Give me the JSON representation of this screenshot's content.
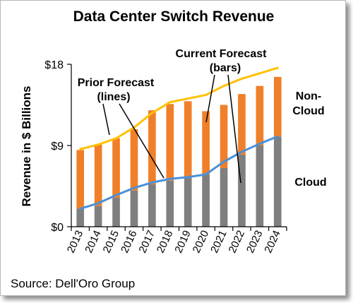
{
  "chart_data": {
    "type": "bar",
    "title": "Data Center Switch Revenue",
    "ylabel": "Revenue in $ Billions",
    "xlabel": "",
    "ylim": [
      0,
      18
    ],
    "yticks": [
      "$0",
      "$9",
      "$18"
    ],
    "ytick_values": [
      0,
      9,
      18
    ],
    "categories": [
      "2013",
      "2014",
      "2015",
      "2016",
      "2017",
      "2018",
      "2019",
      "2020",
      "2021",
      "2022",
      "2023",
      "2024"
    ],
    "series": [
      {
        "name": "Cloud",
        "kind": "bar",
        "color": "#7f7f7f",
        "values": [
          2.0,
          2.3,
          3.2,
          4.0,
          4.7,
          5.1,
          5.5,
          5.8,
          6.5,
          8.0,
          9.0,
          10.0
        ]
      },
      {
        "name": "Non-Cloud",
        "kind": "bar",
        "color": "#f07f2a",
        "values": [
          6.5,
          6.8,
          6.6,
          6.8,
          8.2,
          8.5,
          8.4,
          7.0,
          7.0,
          6.7,
          6.6,
          6.6
        ]
      },
      {
        "name": "Prior Forecast total",
        "kind": "line",
        "color": "#ffc000",
        "values": [
          8.6,
          9.1,
          9.8,
          11.0,
          12.6,
          13.8,
          14.2,
          14.6,
          15.6,
          16.4,
          17.0,
          17.6
        ]
      },
      {
        "name": "Prior Forecast cloud",
        "kind": "line",
        "color": "#4a90d9",
        "values": [
          2.0,
          2.6,
          3.5,
          4.3,
          4.9,
          5.3,
          5.5,
          5.8,
          7.2,
          8.3,
          9.2,
          10.0
        ]
      }
    ],
    "annotations": {
      "current_forecast": [
        "Current Forecast",
        "(bars)"
      ],
      "prior_forecast": [
        "Prior Forecast",
        "(lines)"
      ],
      "non_cloud": [
        "Non-",
        "Cloud"
      ],
      "cloud": "Cloud"
    },
    "source": "Source: Dell'Oro Group",
    "grid": false
  }
}
